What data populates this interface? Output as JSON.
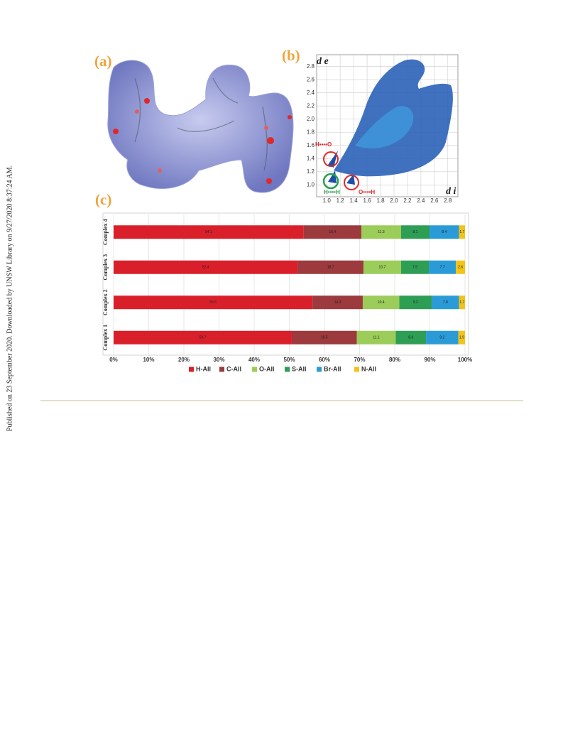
{
  "side_text": "Published on 23 September 2020. Downloaded by UNSW Library on 9/27/2020 8:37:24 AM.",
  "panel_labels": {
    "a": "(a)",
    "b": "(b)",
    "c": "(c)"
  },
  "fingerprint_plot": {
    "x_label": "d i",
    "y_label": "d e",
    "xlim": [
      0.85,
      2.95
    ],
    "ylim": [
      0.82,
      2.98
    ],
    "xticks": [
      {
        "value": 1,
        "label": "1.0"
      },
      1.2,
      1.4,
      1.6,
      1.8,
      {
        "value": 2,
        "label": "2.0"
      },
      2.2,
      2.4,
      2.6,
      2.8
    ],
    "yticks": [
      {
        "value": 1,
        "label": "1.0"
      },
      1.2,
      1.4,
      1.6,
      1.8,
      {
        "value": 2,
        "label": "2.0"
      },
      2.2,
      2.4,
      2.6,
      2.8
    ],
    "annotations": [
      "H••••O",
      "H••••H",
      "O••••H"
    ]
  },
  "chart_data": {
    "type": "stacked-bar-horizontal",
    "categories": [
      "Complex 1",
      "Complex 2",
      "Complex 3",
      "Complex 4"
    ],
    "series": [
      {
        "name": "H-All",
        "color": "#d9202a",
        "values": [
          50.7,
          56.6,
          52.4,
          54.1
        ]
      },
      {
        "name": "C-All",
        "color": "#9c3a3e",
        "values": [
          18.5,
          14.3,
          18.7,
          16.4
        ]
      },
      {
        "name": "O-All",
        "color": "#9ccc5a",
        "values": [
          11.1,
          10.4,
          10.7,
          11.3
        ]
      },
      {
        "name": "S-All",
        "color": "#2e9e55",
        "values": [
          8.6,
          9.2,
          7.9,
          8.1
        ]
      },
      {
        "name": "Br-All",
        "color": "#2b9bd8",
        "values": [
          9.2,
          7.8,
          7.7,
          8.4
        ]
      },
      {
        "name": "N-All",
        "color": "#f2c318",
        "values": [
          1.9,
          1.7,
          2.6,
          1.7
        ]
      }
    ],
    "xlim": [
      0,
      100
    ],
    "xticks": [
      {
        "value": 0,
        "label": "0%"
      },
      {
        "value": 10,
        "label": "10%"
      },
      {
        "value": 20,
        "label": "20%"
      },
      {
        "value": 30,
        "label": "30%"
      },
      {
        "value": 40,
        "label": "40%"
      },
      {
        "value": 50,
        "label": "50%"
      },
      {
        "value": 60,
        "label": "60%"
      },
      {
        "value": 70,
        "label": "70%"
      },
      {
        "value": 80,
        "label": "80%"
      },
      {
        "value": 90,
        "label": "90%"
      },
      {
        "value": 100,
        "label": "100%"
      }
    ],
    "grid": true
  }
}
